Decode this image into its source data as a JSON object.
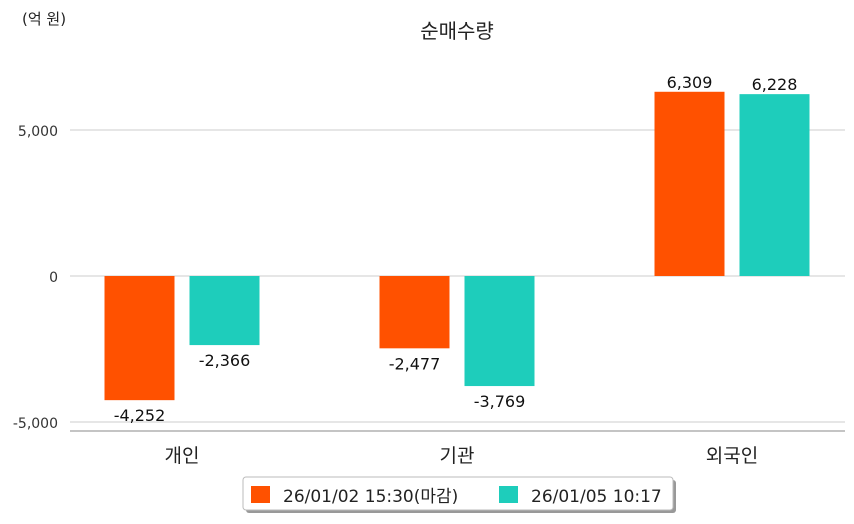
{
  "chart_data": {
    "type": "bar",
    "title": "순매수량",
    "unit_label": "(억 원)",
    "categories": [
      "개인",
      "기관",
      "외국인"
    ],
    "series": [
      {
        "name": "26/01/02 15:30(마감)",
        "color": "#ff5100",
        "values": [
          -4252,
          -2477,
          6309
        ],
        "labels": [
          "-4,252",
          "-2,477",
          "6,309"
        ]
      },
      {
        "name": "26/01/05 10:17",
        "color": "#1ecdbb",
        "values": [
          -2366,
          -3769,
          6228
        ],
        "labels": [
          "-2,366",
          "-3,769",
          "6,228"
        ]
      }
    ],
    "yticks": [
      5000,
      0,
      -5000
    ],
    "ytick_labels": [
      "5,000",
      "0",
      "-5,000"
    ],
    "ylim": [
      -5300,
      7000
    ],
    "grid": true,
    "legend_position": "bottom-center"
  }
}
